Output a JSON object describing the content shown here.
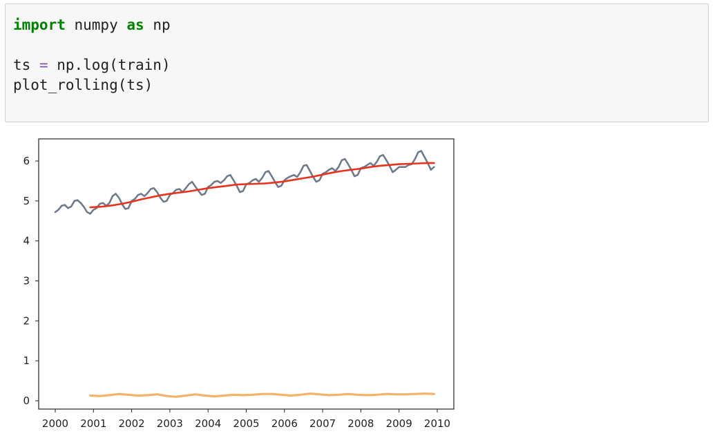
{
  "code_cell": {
    "line1": {
      "kw1": "import",
      "mid": " numpy ",
      "kw2": "as",
      "end": " np"
    },
    "line3": {
      "start": "ts ",
      "op": "=",
      "end": " np.log(train)"
    },
    "line4": "plot_rolling(ts)"
  },
  "chart_data": {
    "type": "line",
    "title": "",
    "xlabel": "",
    "ylabel": "",
    "xlim": [
      2000,
      2010
    ],
    "ylim": [
      -0.1,
      6.5
    ],
    "x_ticks": [
      "2000",
      "2001",
      "2002",
      "2003",
      "2004",
      "2005",
      "2006",
      "2007",
      "2008",
      "2009",
      "2010"
    ],
    "y_ticks": [
      "0",
      "1",
      "2",
      "3",
      "4",
      "5",
      "6"
    ],
    "grid": false,
    "legend": "none",
    "colors": {
      "original": "#6f7a8a",
      "rolling_mean": "#e8321e",
      "rolling_std": "#f7b26a"
    },
    "series": [
      {
        "key": "original",
        "x": [
          2000.0,
          2000.083,
          2000.167,
          2000.25,
          2000.333,
          2000.417,
          2000.5,
          2000.583,
          2000.667,
          2000.75,
          2000.833,
          2000.917,
          2001.0,
          2001.083,
          2001.167,
          2001.25,
          2001.333,
          2001.417,
          2001.5,
          2001.583,
          2001.667,
          2001.75,
          2001.833,
          2001.917,
          2002.0,
          2002.083,
          2002.167,
          2002.25,
          2002.333,
          2002.417,
          2002.5,
          2002.583,
          2002.667,
          2002.75,
          2002.833,
          2002.917,
          2003.0,
          2003.083,
          2003.167,
          2003.25,
          2003.333,
          2003.417,
          2003.5,
          2003.583,
          2003.667,
          2003.75,
          2003.833,
          2003.917,
          2004.0,
          2004.083,
          2004.167,
          2004.25,
          2004.333,
          2004.417,
          2004.5,
          2004.583,
          2004.667,
          2004.75,
          2004.833,
          2004.917,
          2005.0,
          2005.083,
          2005.167,
          2005.25,
          2005.333,
          2005.417,
          2005.5,
          2005.583,
          2005.667,
          2005.75,
          2005.833,
          2005.917,
          2006.0,
          2006.083,
          2006.167,
          2006.25,
          2006.333,
          2006.417,
          2006.5,
          2006.583,
          2006.667,
          2006.75,
          2006.833,
          2006.917,
          2007.0,
          2007.083,
          2007.167,
          2007.25,
          2007.333,
          2007.417,
          2007.5,
          2007.583,
          2007.667,
          2007.75,
          2007.833,
          2007.917,
          2008.0,
          2008.083,
          2008.167,
          2008.25,
          2008.333,
          2008.417,
          2008.5,
          2008.583,
          2008.667,
          2008.75,
          2008.833,
          2008.917,
          2009.0,
          2009.083,
          2009.167,
          2009.25,
          2009.333,
          2009.417,
          2009.5,
          2009.583,
          2009.667,
          2009.75,
          2009.833,
          2009.917
        ],
        "y": [
          4.72,
          4.78,
          4.88,
          4.9,
          4.82,
          4.86,
          5.0,
          5.02,
          4.95,
          4.85,
          4.72,
          4.68,
          4.78,
          4.82,
          4.93,
          4.95,
          4.88,
          4.95,
          5.12,
          5.18,
          5.08,
          4.92,
          4.8,
          4.82,
          5.0,
          5.05,
          5.15,
          5.18,
          5.12,
          5.2,
          5.3,
          5.32,
          5.22,
          5.08,
          4.98,
          5.0,
          5.15,
          5.2,
          5.28,
          5.3,
          5.22,
          5.32,
          5.42,
          5.48,
          5.36,
          5.25,
          5.15,
          5.18,
          5.35,
          5.4,
          5.48,
          5.5,
          5.45,
          5.52,
          5.62,
          5.65,
          5.52,
          5.38,
          5.22,
          5.25,
          5.42,
          5.45,
          5.52,
          5.55,
          5.48,
          5.58,
          5.72,
          5.75,
          5.62,
          5.48,
          5.35,
          5.38,
          5.52,
          5.58,
          5.62,
          5.65,
          5.6,
          5.72,
          5.88,
          5.9,
          5.75,
          5.6,
          5.48,
          5.52,
          5.68,
          5.72,
          5.78,
          5.82,
          5.75,
          5.85,
          6.02,
          6.05,
          5.92,
          5.78,
          5.62,
          5.65,
          5.82,
          5.85,
          5.9,
          5.95,
          5.88,
          5.98,
          6.12,
          6.15,
          6.02,
          5.88,
          5.72,
          5.78,
          5.85,
          5.85,
          5.85,
          5.9,
          5.92,
          6.05,
          6.22,
          6.25,
          6.1,
          5.95,
          5.78,
          5.85
        ]
      },
      {
        "key": "rolling_mean",
        "x": [
          2000.917,
          2001.25,
          2001.5,
          2001.75,
          2002.0,
          2002.25,
          2002.5,
          2002.75,
          2003.0,
          2003.25,
          2003.5,
          2003.75,
          2004.0,
          2004.25,
          2004.5,
          2004.75,
          2005.0,
          2005.25,
          2005.5,
          2005.75,
          2006.0,
          2006.25,
          2006.5,
          2006.75,
          2007.0,
          2007.25,
          2007.5,
          2007.75,
          2008.0,
          2008.25,
          2008.5,
          2008.75,
          2009.0,
          2009.25,
          2009.5,
          2009.75,
          2009.917
        ],
        "y": [
          4.84,
          4.86,
          4.89,
          4.93,
          4.98,
          5.04,
          5.09,
          5.14,
          5.18,
          5.21,
          5.24,
          5.28,
          5.32,
          5.35,
          5.38,
          5.41,
          5.42,
          5.43,
          5.44,
          5.46,
          5.49,
          5.53,
          5.57,
          5.61,
          5.66,
          5.71,
          5.75,
          5.78,
          5.81,
          5.85,
          5.88,
          5.9,
          5.92,
          5.93,
          5.94,
          5.95,
          5.95
        ]
      },
      {
        "key": "rolling_std",
        "x": [
          2000.917,
          2001.167,
          2001.417,
          2001.667,
          2001.917,
          2002.167,
          2002.417,
          2002.667,
          2002.917,
          2003.167,
          2003.417,
          2003.667,
          2003.917,
          2004.167,
          2004.417,
          2004.667,
          2004.917,
          2005.167,
          2005.417,
          2005.667,
          2005.917,
          2006.167,
          2006.417,
          2006.667,
          2006.917,
          2007.167,
          2007.417,
          2007.667,
          2007.917,
          2008.167,
          2008.417,
          2008.667,
          2008.917,
          2009.167,
          2009.417,
          2009.667,
          2009.917
        ],
        "y": [
          0.13,
          0.12,
          0.14,
          0.17,
          0.15,
          0.13,
          0.14,
          0.16,
          0.12,
          0.1,
          0.13,
          0.16,
          0.13,
          0.11,
          0.13,
          0.15,
          0.14,
          0.15,
          0.17,
          0.17,
          0.15,
          0.13,
          0.15,
          0.18,
          0.16,
          0.14,
          0.15,
          0.17,
          0.15,
          0.14,
          0.15,
          0.17,
          0.16,
          0.16,
          0.17,
          0.18,
          0.17
        ]
      }
    ]
  }
}
